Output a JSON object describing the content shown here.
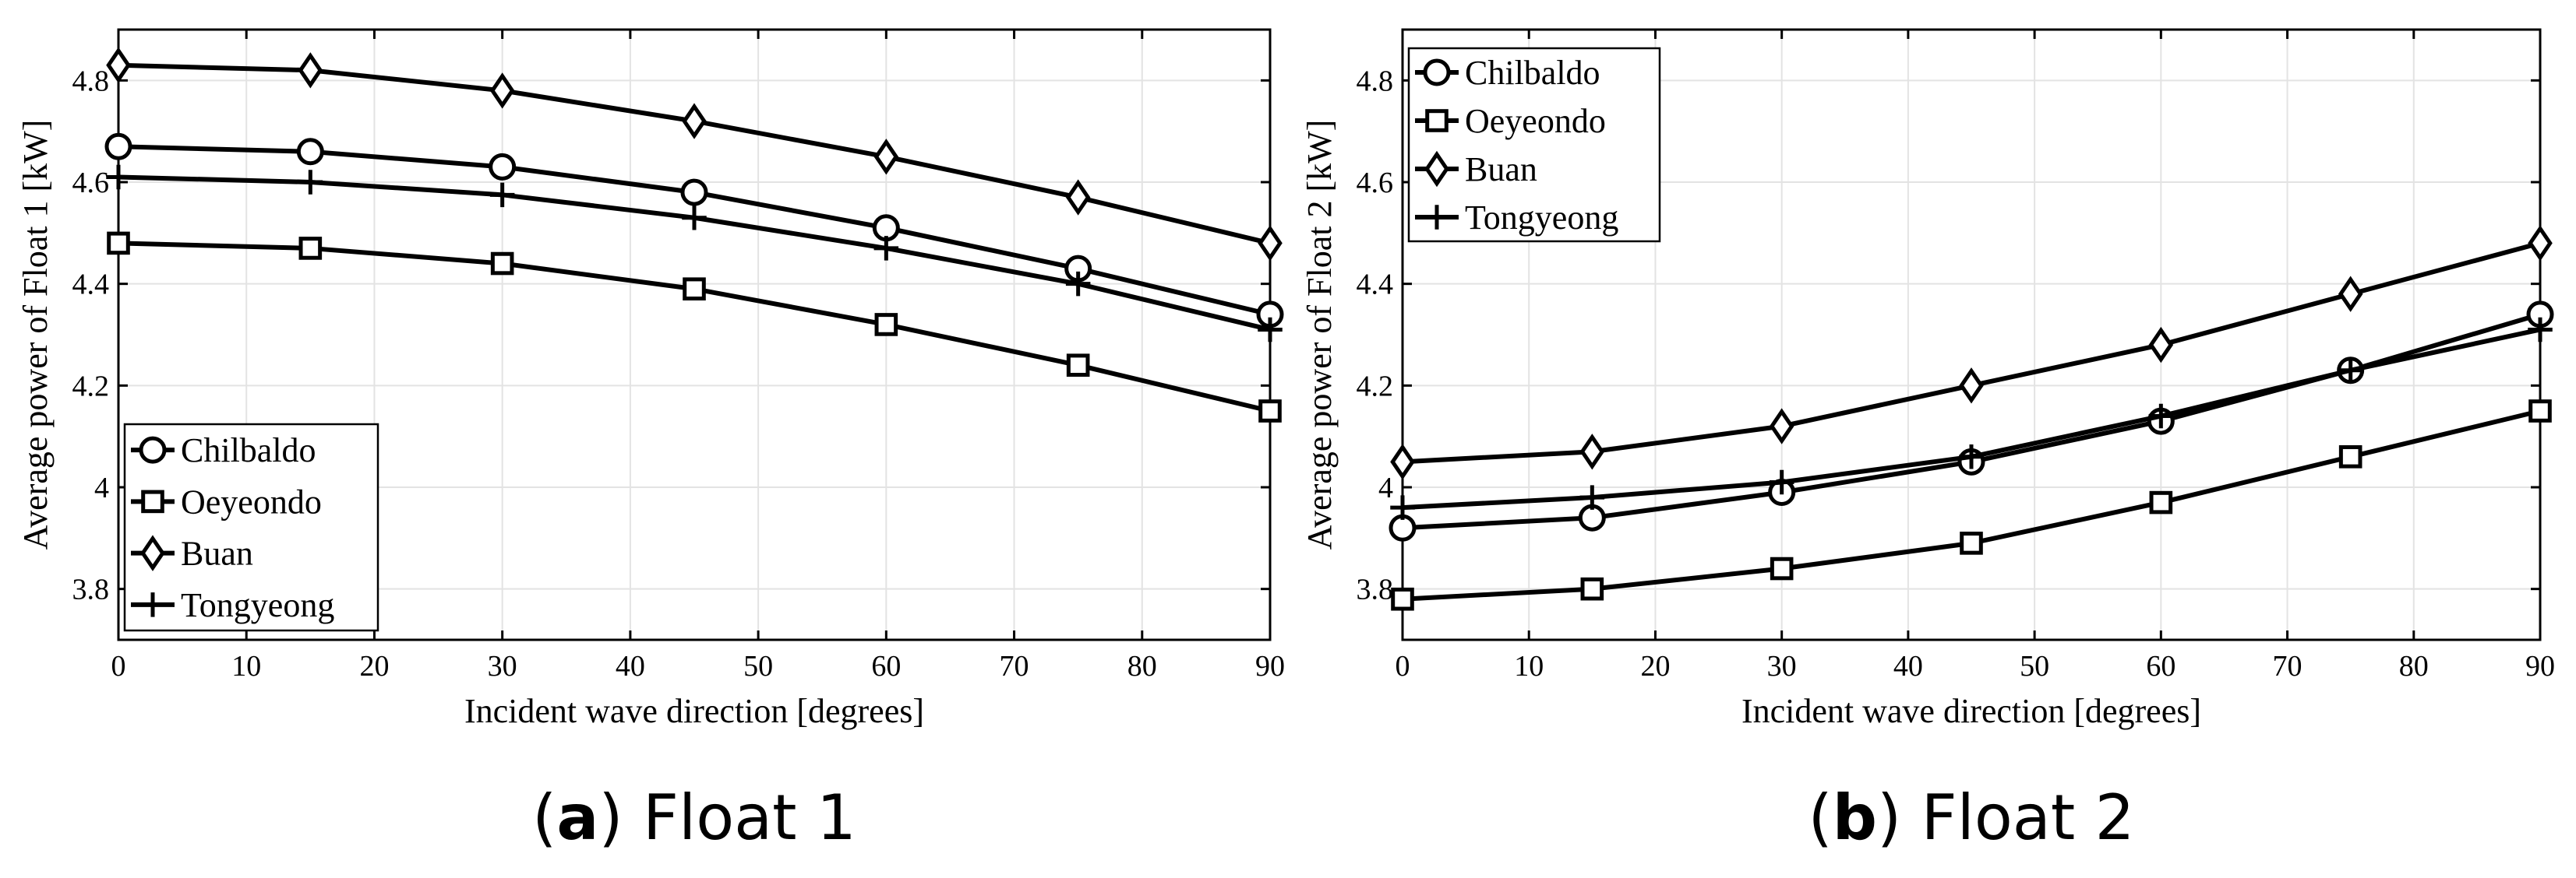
{
  "chart_data": [
    {
      "type": "line",
      "panel_id": "a",
      "caption_letter": "a",
      "caption_open": "(",
      "caption_close": ")",
      "caption_text": " Float 1",
      "xlabel": "Incident wave direction [degrees]",
      "ylabel": "Average power of Float 1 [kW]",
      "x": [
        0,
        15,
        30,
        45,
        60,
        75,
        90
      ],
      "xlim": [
        0,
        90
      ],
      "ylim": [
        3.7,
        4.9
      ],
      "xticks": [
        0,
        10,
        20,
        30,
        40,
        50,
        60,
        70,
        80,
        90
      ],
      "xtick_labels": [
        "0",
        "10",
        "20",
        "30",
        "40",
        "50",
        "60",
        "70",
        "80",
        "90"
      ],
      "yticks": [
        3.8,
        4.0,
        4.2,
        4.4,
        4.6,
        4.8
      ],
      "ytick_labels": [
        "3.8",
        "4",
        "4.2",
        "4.4",
        "4.6",
        "4.8"
      ],
      "grid": true,
      "legend_position": "bottom-left",
      "series": [
        {
          "name": "Chilbaldo",
          "marker": "circle",
          "values": [
            4.67,
            4.66,
            4.63,
            4.58,
            4.51,
            4.43,
            4.34
          ]
        },
        {
          "name": "Oeyeondo",
          "marker": "square",
          "values": [
            4.48,
            4.47,
            4.44,
            4.39,
            4.32,
            4.24,
            4.15
          ]
        },
        {
          "name": "Buan",
          "marker": "diamond",
          "values": [
            4.83,
            4.82,
            4.78,
            4.72,
            4.65,
            4.57,
            4.48
          ]
        },
        {
          "name": "Tongyeong",
          "marker": "plus",
          "values": [
            4.61,
            4.6,
            4.575,
            4.53,
            4.47,
            4.4,
            4.31
          ]
        }
      ]
    },
    {
      "type": "line",
      "panel_id": "b",
      "caption_letter": "b",
      "caption_open": "(",
      "caption_close": ")",
      "caption_text": " Float 2",
      "xlabel": "Incident wave direction [degrees]",
      "ylabel": "Average power of Float 2 [kW]",
      "x": [
        0,
        15,
        30,
        45,
        60,
        75,
        90
      ],
      "xlim": [
        0,
        90
      ],
      "ylim": [
        3.7,
        4.9
      ],
      "xticks": [
        0,
        10,
        20,
        30,
        40,
        50,
        60,
        70,
        80,
        90
      ],
      "xtick_labels": [
        "0",
        "10",
        "20",
        "30",
        "40",
        "50",
        "60",
        "70",
        "80",
        "90"
      ],
      "yticks": [
        3.8,
        4.0,
        4.2,
        4.4,
        4.6,
        4.8
      ],
      "ytick_labels": [
        "3.8",
        "4",
        "4.2",
        "4.4",
        "4.6",
        "4.8"
      ],
      "grid": true,
      "legend_position": "top-left",
      "series": [
        {
          "name": "Chilbaldo",
          "marker": "circle",
          "values": [
            3.92,
            3.94,
            3.99,
            4.05,
            4.13,
            4.23,
            4.34
          ]
        },
        {
          "name": "Oeyeondo",
          "marker": "square",
          "values": [
            3.78,
            3.8,
            3.84,
            3.89,
            3.97,
            4.06,
            4.15
          ]
        },
        {
          "name": "Buan",
          "marker": "diamond",
          "values": [
            4.05,
            4.07,
            4.12,
            4.2,
            4.28,
            4.38,
            4.48
          ]
        },
        {
          "name": "Tongyeong",
          "marker": "plus",
          "values": [
            3.96,
            3.98,
            4.01,
            4.06,
            4.14,
            4.23,
            4.31
          ]
        }
      ]
    }
  ]
}
